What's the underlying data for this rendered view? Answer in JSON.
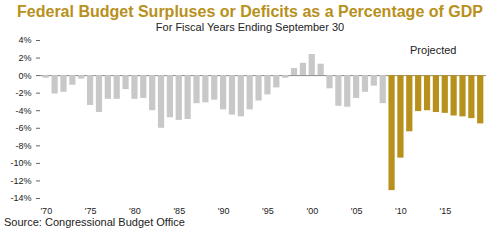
{
  "chart_data": {
    "type": "bar",
    "title": "Federal Budget Surpluses or Deficits as a Percentage of GDP",
    "subtitle": "For Fiscal Years Ending September 30",
    "annotations": [
      "Projected"
    ],
    "caption": "Source: Congressional Budget Office",
    "categories": [
      "'70",
      null,
      null,
      null,
      null,
      "'75",
      null,
      null,
      null,
      null,
      "'80",
      null,
      null,
      null,
      null,
      "'85",
      null,
      null,
      null,
      null,
      "'90",
      null,
      null,
      null,
      null,
      "'95",
      null,
      null,
      null,
      null,
      "'00",
      null,
      null,
      null,
      null,
      "'05",
      null,
      null,
      null,
      null,
      "'10",
      null,
      null,
      null,
      null,
      "'15",
      null,
      null,
      null,
      null
    ],
    "values": [
      -0.3,
      -2.1,
      -1.9,
      -1.1,
      -0.4,
      -3.4,
      -4.2,
      -2.7,
      -2.7,
      -1.6,
      -2.7,
      -2.6,
      -4.0,
      -6.0,
      -4.8,
      -5.1,
      -5.0,
      -3.2,
      -3.1,
      -2.8,
      -3.9,
      -4.5,
      -4.7,
      -3.9,
      -2.9,
      -2.2,
      -1.4,
      -0.3,
      0.8,
      1.4,
      2.4,
      1.3,
      -1.5,
      -3.5,
      -3.6,
      -2.6,
      -1.9,
      -1.2,
      -3.2,
      -13.1,
      -9.4,
      -6.4,
      -4.1,
      -4.0,
      -4.2,
      -4.3,
      -4.6,
      -4.7,
      -4.9,
      -5.5
    ],
    "colors": [
      "#c8c8c8",
      "#c8c8c8",
      "#c8c8c8",
      "#c8c8c8",
      "#c8c8c8",
      "#c8c8c8",
      "#c8c8c8",
      "#c8c8c8",
      "#c8c8c8",
      "#c8c8c8",
      "#c8c8c8",
      "#c8c8c8",
      "#c8c8c8",
      "#c8c8c8",
      "#c8c8c8",
      "#c8c8c8",
      "#c8c8c8",
      "#c8c8c8",
      "#c8c8c8",
      "#c8c8c8",
      "#c8c8c8",
      "#c8c8c8",
      "#c8c8c8",
      "#c8c8c8",
      "#c8c8c8",
      "#c8c8c8",
      "#c8c8c8",
      "#c8c8c8",
      "#c8c8c8",
      "#c8c8c8",
      "#c8c8c8",
      "#c8c8c8",
      "#c8c8c8",
      "#c8c8c8",
      "#c8c8c8",
      "#c8c8c8",
      "#c8c8c8",
      "#c8c8c8",
      "#c8c8c8",
      "#b8901c",
      "#b8901c",
      "#b8901c",
      "#b8901c",
      "#b8901c",
      "#b8901c",
      "#b8901c",
      "#b8901c",
      "#b8901c",
      "#b8901c",
      "#b8901c"
    ],
    "ylim": [
      -14,
      4
    ],
    "yticks": [
      {
        "value": 4,
        "label": "4%"
      },
      {
        "value": 2,
        "label": "2%"
      },
      {
        "value": 0,
        "label": "0%"
      },
      {
        "value": -2,
        "label": "-2%"
      },
      {
        "value": -4,
        "label": "-4%"
      },
      {
        "value": -6,
        "label": "-6%"
      },
      {
        "value": -8,
        "label": "-8%"
      },
      {
        "value": -10,
        "label": "-10%"
      },
      {
        "value": -12,
        "label": "-12%"
      },
      {
        "value": -14,
        "label": "-14%"
      }
    ],
    "grid": false
  }
}
